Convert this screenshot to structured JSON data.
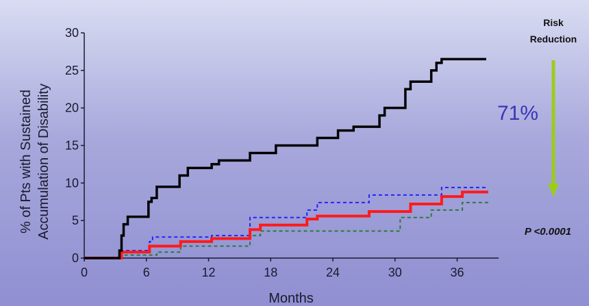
{
  "chart_data": {
    "type": "line",
    "ylabel_lines": [
      "% of Pts with Sustained",
      "Accumulation of Disability"
    ],
    "xlabel": "Months",
    "xticks": [
      0,
      6,
      12,
      18,
      24,
      30,
      36
    ],
    "yticks": [
      0,
      5,
      10,
      15,
      20,
      25,
      30
    ],
    "xlim": [
      0,
      40
    ],
    "ylim": [
      0,
      30
    ],
    "grid": false,
    "series": [
      {
        "color": "#000000",
        "dash": "solid",
        "steps": [
          [
            0,
            0
          ],
          [
            3.2,
            0
          ],
          [
            3.4,
            1
          ],
          [
            3.6,
            3
          ],
          [
            3.8,
            4.5
          ],
          [
            4.2,
            5.5
          ],
          [
            6,
            5.5
          ],
          [
            6.2,
            7.5
          ],
          [
            6.5,
            8
          ],
          [
            7,
            9.5
          ],
          [
            9,
            9.5
          ],
          [
            9.2,
            11
          ],
          [
            10,
            12
          ],
          [
            12,
            12
          ],
          [
            12.3,
            12.5
          ],
          [
            13,
            13
          ],
          [
            15.5,
            13
          ],
          [
            16,
            14
          ],
          [
            18,
            14
          ],
          [
            18.5,
            15
          ],
          [
            22,
            15
          ],
          [
            22.5,
            16
          ],
          [
            24,
            16
          ],
          [
            24.5,
            17
          ],
          [
            26,
            17.5
          ],
          [
            28,
            17.5
          ],
          [
            28.5,
            19
          ],
          [
            29,
            20
          ],
          [
            30.5,
            20
          ],
          [
            31,
            22.5
          ],
          [
            31.5,
            23.5
          ],
          [
            33,
            23.5
          ],
          [
            33.5,
            25
          ],
          [
            34,
            26
          ],
          [
            34.5,
            26.5
          ],
          [
            38.8,
            26.5
          ]
        ]
      },
      {
        "color": "#ff1a1a",
        "dash": "solid",
        "steps": [
          [
            0,
            0
          ],
          [
            3.2,
            0
          ],
          [
            3.6,
            0.8
          ],
          [
            6,
            0.8
          ],
          [
            6.3,
            1.6
          ],
          [
            9,
            1.6
          ],
          [
            9.3,
            2.2
          ],
          [
            12,
            2.2
          ],
          [
            12.3,
            2.6
          ],
          [
            15.5,
            2.6
          ],
          [
            16,
            3.8
          ],
          [
            17,
            4.4
          ],
          [
            21,
            4.4
          ],
          [
            21.5,
            5.2
          ],
          [
            22.5,
            5.6
          ],
          [
            27,
            5.6
          ],
          [
            27.5,
            6.2
          ],
          [
            31,
            6.2
          ],
          [
            31.5,
            7.2
          ],
          [
            34,
            7.2
          ],
          [
            34.5,
            8.2
          ],
          [
            36,
            8.2
          ],
          [
            36.5,
            8.8
          ],
          [
            39,
            8.8
          ]
        ]
      },
      {
        "color": "#2222ff",
        "dash": "dashed",
        "steps": [
          [
            0,
            0
          ],
          [
            3.2,
            0
          ],
          [
            3.6,
            1
          ],
          [
            6,
            1
          ],
          [
            6.3,
            2.2
          ],
          [
            6.6,
            2.8
          ],
          [
            12,
            2.8
          ],
          [
            12.3,
            3
          ],
          [
            15.5,
            3
          ],
          [
            16,
            5.4
          ],
          [
            21,
            5.4
          ],
          [
            21.5,
            6.4
          ],
          [
            22.5,
            7.4
          ],
          [
            27,
            7.4
          ],
          [
            27.5,
            8.4
          ],
          [
            34,
            8.4
          ],
          [
            34.5,
            9.4
          ],
          [
            39,
            9.4
          ]
        ]
      },
      {
        "color": "#2a7a3a",
        "dash": "dashed",
        "steps": [
          [
            0,
            0
          ],
          [
            3.2,
            0
          ],
          [
            3.6,
            0.4
          ],
          [
            6.5,
            0.4
          ],
          [
            7,
            0.8
          ],
          [
            9,
            0.8
          ],
          [
            9.3,
            1.6
          ],
          [
            12.5,
            1.6
          ],
          [
            15.5,
            1.6
          ],
          [
            16,
            3
          ],
          [
            17,
            3.6
          ],
          [
            30,
            3.6
          ],
          [
            30.5,
            5.4
          ],
          [
            33,
            5.4
          ],
          [
            33.5,
            6.4
          ],
          [
            36,
            6.4
          ],
          [
            36.5,
            7.4
          ],
          [
            39,
            7.4
          ]
        ]
      }
    ]
  },
  "side_panel": {
    "title_line1": "Risk",
    "title_line2": "Reduction",
    "reduction_value": "71%",
    "p_value": "P <0.0001",
    "arrow_color": "#9ccc1a"
  }
}
